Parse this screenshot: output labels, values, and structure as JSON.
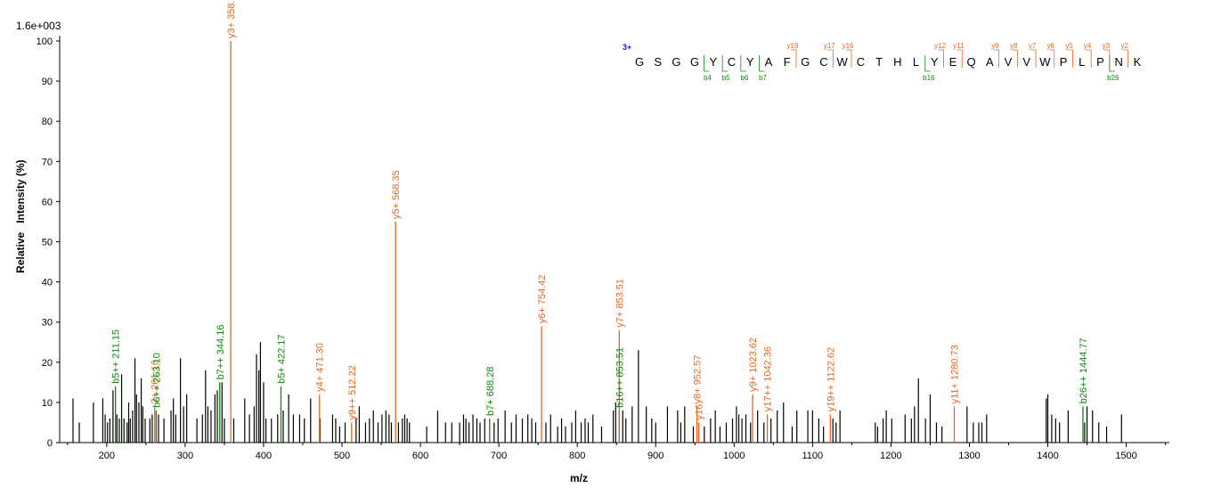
{
  "scale_label": "1.6e+003",
  "charge_label": "3+",
  "colors": {
    "y_ion": "#e8671f",
    "b_ion": "#0a8a0a",
    "unassigned": "#000000",
    "charge": "#1a1acc"
  },
  "sequence": {
    "residues": [
      "G",
      "S",
      "G",
      "G",
      "Y",
      "C",
      "Y",
      "A",
      "F",
      "G",
      "C",
      "W",
      "C",
      "T",
      "H",
      "L",
      "Y",
      "E",
      "Q",
      "A",
      "V",
      "V",
      "W",
      "P",
      "L",
      "P",
      "N",
      "K"
    ],
    "y_markers": [
      {
        "after_index": 8,
        "label": "y19"
      },
      {
        "after_index": 10,
        "label": "y17"
      },
      {
        "after_index": 11,
        "label": "y16"
      },
      {
        "after_index": 16,
        "label": "y12"
      },
      {
        "after_index": 17,
        "label": "y11"
      },
      {
        "after_index": 19,
        "label": "y9"
      },
      {
        "after_index": 20,
        "label": "y8"
      },
      {
        "after_index": 21,
        "label": "y7"
      },
      {
        "after_index": 22,
        "label": "y6"
      },
      {
        "after_index": 23,
        "label": "y5"
      },
      {
        "after_index": 24,
        "label": "y4"
      },
      {
        "after_index": 25,
        "label": "y3"
      },
      {
        "after_index": 26,
        "label": "y2"
      }
    ],
    "b_markers": [
      {
        "after_index": 4,
        "label": "b4"
      },
      {
        "after_index": 5,
        "label": "b5"
      },
      {
        "after_index": 6,
        "label": "b6"
      },
      {
        "after_index": 7,
        "label": "b7"
      },
      {
        "after_index": 16,
        "label": "b16"
      },
      {
        "after_index": 26,
        "label": "b26"
      }
    ]
  },
  "chart_data": {
    "type": "bar",
    "title": "",
    "xlabel": "m/z",
    "ylabel": "Relative   Intensity (%)",
    "xlim": [
      140,
      1555
    ],
    "ylim": [
      0,
      100
    ],
    "xticks": [
      200,
      300,
      400,
      500,
      600,
      700,
      800,
      900,
      1000,
      1100,
      1200,
      1300,
      1400,
      1500
    ],
    "yticks": [
      0,
      10,
      20,
      30,
      40,
      50,
      60,
      70,
      80,
      90,
      100
    ],
    "annotated_peaks": [
      {
        "mz": 211.15,
        "intensity": 14,
        "ion": "b",
        "label": "b5++ 211.15"
      },
      {
        "mz": 261.16,
        "intensity": 9,
        "ion": "y",
        "label": "2+ 261.16"
      },
      {
        "mz": 263.1,
        "intensity": 8,
        "ion": "b",
        "label": "b6++ 263.10"
      },
      {
        "mz": 344.16,
        "intensity": 15,
        "ion": "b",
        "label": "b7++ 344.16"
      },
      {
        "mz": 358.2,
        "intensity": 100,
        "ion": "y",
        "label": "y3+ 358.2"
      },
      {
        "mz": 422.17,
        "intensity": 14,
        "ion": "b",
        "label": "b5+ 422.17"
      },
      {
        "mz": 471.3,
        "intensity": 12,
        "ion": "y",
        "label": "y4+ 471.30"
      },
      {
        "mz": 512.22,
        "intensity": 5,
        "ion": "y",
        "label": "y9++ 512.22"
      },
      {
        "mz": 568.35,
        "intensity": 55,
        "ion": "y",
        "label": "y5+ 568.35"
      },
      {
        "mz": 688.28,
        "intensity": 6,
        "ion": "b",
        "label": "b7+ 688.28"
      },
      {
        "mz": 754.42,
        "intensity": 29,
        "ion": "y",
        "label": "y6+ 754.42"
      },
      {
        "mz": 853.51,
        "intensity": 8,
        "ion": "b",
        "label": "b16++ 853.51"
      },
      {
        "mz": 853.52,
        "intensity": 28,
        "ion": "y",
        "label": "y7+ 853.51"
      },
      {
        "mz": 952.57,
        "intensity": 9,
        "ion": "y",
        "label": "y8+ 952.57"
      },
      {
        "mz": 955,
        "intensity": 5,
        "ion": "y",
        "label": "y16"
      },
      {
        "mz": 1023.62,
        "intensity": 12,
        "ion": "y",
        "label": "y9+ 1023.62"
      },
      {
        "mz": 1042.36,
        "intensity": 7,
        "ion": "y",
        "label": "y17++ 1042.36"
      },
      {
        "mz": 1122.62,
        "intensity": 7,
        "ion": "y",
        "label": "y19++ 1122.62"
      },
      {
        "mz": 1280.73,
        "intensity": 9,
        "ion": "y",
        "label": "y11+ 1280.73"
      },
      {
        "mz": 1444.77,
        "intensity": 9,
        "ion": "b",
        "label": "b26++ 1444.77"
      }
    ],
    "unassigned_peaks": [
      [
        157,
        11
      ],
      [
        165,
        5
      ],
      [
        183,
        10
      ],
      [
        195,
        11
      ],
      [
        198,
        7
      ],
      [
        201,
        5
      ],
      [
        204,
        6
      ],
      [
        208,
        13
      ],
      [
        213,
        7
      ],
      [
        216,
        6
      ],
      [
        219,
        17
      ],
      [
        222,
        6
      ],
      [
        226,
        5
      ],
      [
        228,
        10
      ],
      [
        230,
        6
      ],
      [
        233,
        8
      ],
      [
        236,
        21
      ],
      [
        238,
        12
      ],
      [
        241,
        10
      ],
      [
        244,
        16
      ],
      [
        246,
        9
      ],
      [
        249,
        6
      ],
      [
        255,
        6
      ],
      [
        258,
        7
      ],
      [
        266,
        7
      ],
      [
        273,
        6
      ],
      [
        282,
        8
      ],
      [
        285,
        11
      ],
      [
        288,
        7
      ],
      [
        294,
        21
      ],
      [
        298,
        9
      ],
      [
        302,
        12
      ],
      [
        315,
        6
      ],
      [
        322,
        7
      ],
      [
        326,
        18
      ],
      [
        329,
        9
      ],
      [
        333,
        8
      ],
      [
        338,
        12
      ],
      [
        341,
        13
      ],
      [
        347,
        15
      ],
      [
        350,
        6
      ],
      [
        362,
        6
      ],
      [
        376,
        11
      ],
      [
        382,
        7
      ],
      [
        388,
        9
      ],
      [
        391,
        22
      ],
      [
        394,
        18
      ],
      [
        396,
        25
      ],
      [
        400,
        15
      ],
      [
        403,
        6
      ],
      [
        410,
        6
      ],
      [
        418,
        7
      ],
      [
        425,
        8
      ],
      [
        432,
        12
      ],
      [
        438,
        7
      ],
      [
        446,
        7
      ],
      [
        452,
        6
      ],
      [
        460,
        11
      ],
      [
        472,
        6
      ],
      [
        488,
        7
      ],
      [
        492,
        6
      ],
      [
        497,
        4
      ],
      [
        504,
        5
      ],
      [
        518,
        6
      ],
      [
        522,
        9
      ],
      [
        530,
        5
      ],
      [
        535,
        6
      ],
      [
        540,
        8
      ],
      [
        546,
        5
      ],
      [
        551,
        7
      ],
      [
        556,
        8
      ],
      [
        560,
        7
      ],
      [
        563,
        5
      ],
      [
        572,
        5
      ],
      [
        577,
        6
      ],
      [
        580,
        7
      ],
      [
        583,
        6
      ],
      [
        586,
        5
      ],
      [
        608,
        4
      ],
      [
        622,
        8
      ],
      [
        632,
        5
      ],
      [
        640,
        5
      ],
      [
        650,
        5
      ],
      [
        655,
        7
      ],
      [
        658,
        6
      ],
      [
        662,
        5
      ],
      [
        667,
        7
      ],
      [
        672,
        6
      ],
      [
        676,
        5
      ],
      [
        682,
        6
      ],
      [
        694,
        5
      ],
      [
        699,
        6
      ],
      [
        708,
        8
      ],
      [
        716,
        5
      ],
      [
        722,
        7
      ],
      [
        730,
        6
      ],
      [
        737,
        7
      ],
      [
        742,
        6
      ],
      [
        747,
        5
      ],
      [
        760,
        5
      ],
      [
        766,
        7
      ],
      [
        775,
        4
      ],
      [
        780,
        6
      ],
      [
        785,
        4
      ],
      [
        793,
        5
      ],
      [
        798,
        8
      ],
      [
        805,
        5
      ],
      [
        810,
        6
      ],
      [
        814,
        5
      ],
      [
        820,
        7
      ],
      [
        831,
        4
      ],
      [
        846,
        8
      ],
      [
        849,
        10
      ],
      [
        858,
        8
      ],
      [
        862,
        6
      ],
      [
        870,
        9
      ],
      [
        878,
        23
      ],
      [
        888,
        9
      ],
      [
        895,
        6
      ],
      [
        900,
        5
      ],
      [
        915,
        9
      ],
      [
        928,
        8
      ],
      [
        932,
        5
      ],
      [
        937,
        9
      ],
      [
        948,
        4
      ],
      [
        962,
        4
      ],
      [
        970,
        6
      ],
      [
        976,
        8
      ],
      [
        982,
        4
      ],
      [
        990,
        5
      ],
      [
        998,
        6
      ],
      [
        1003,
        9
      ],
      [
        1006,
        7
      ],
      [
        1010,
        6
      ],
      [
        1015,
        7
      ],
      [
        1021,
        5
      ],
      [
        1030,
        8
      ],
      [
        1038,
        5
      ],
      [
        1047,
        6
      ],
      [
        1055,
        8
      ],
      [
        1063,
        10
      ],
      [
        1074,
        4
      ],
      [
        1080,
        8
      ],
      [
        1094,
        8
      ],
      [
        1100,
        8
      ],
      [
        1108,
        6
      ],
      [
        1114,
        4
      ],
      [
        1126,
        6
      ],
      [
        1130,
        5
      ],
      [
        1135,
        8
      ],
      [
        1180,
        5
      ],
      [
        1183,
        4
      ],
      [
        1190,
        6
      ],
      [
        1194,
        8
      ],
      [
        1201,
        6
      ],
      [
        1218,
        7
      ],
      [
        1226,
        6
      ],
      [
        1230,
        9
      ],
      [
        1235,
        16
      ],
      [
        1244,
        6
      ],
      [
        1250,
        12
      ],
      [
        1258,
        5
      ],
      [
        1265,
        4
      ],
      [
        1297,
        9
      ],
      [
        1305,
        5
      ],
      [
        1312,
        5
      ],
      [
        1316,
        5
      ],
      [
        1322,
        7
      ],
      [
        1398,
        11
      ],
      [
        1400,
        12
      ],
      [
        1405,
        7
      ],
      [
        1410,
        6
      ],
      [
        1415,
        5
      ],
      [
        1426,
        8
      ],
      [
        1447,
        5
      ],
      [
        1450,
        9
      ],
      [
        1457,
        8
      ],
      [
        1465,
        5
      ],
      [
        1475,
        4
      ],
      [
        1494,
        7
      ]
    ]
  }
}
